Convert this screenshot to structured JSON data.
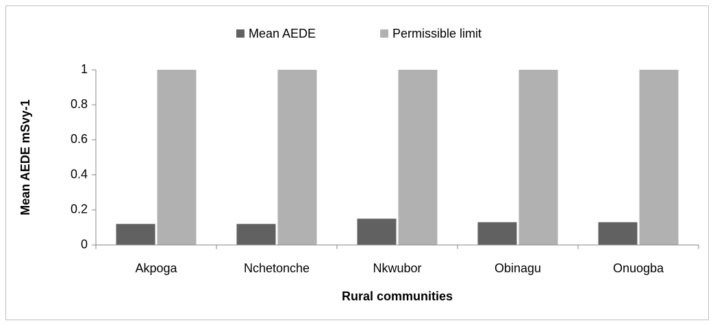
{
  "chart_data": {
    "type": "bar",
    "categories": [
      "Akpoga",
      "Nchetonche",
      "Nkwubor",
      "Obinagu",
      "Onuogba"
    ],
    "series": [
      {
        "name": "Mean AEDE",
        "color": "#616161",
        "values": [
          0.12,
          0.12,
          0.15,
          0.13,
          0.13
        ]
      },
      {
        "name": "Permissible limit",
        "color": "#b1b1b1",
        "values": [
          1,
          1,
          1,
          1,
          1
        ]
      }
    ],
    "xlabel": "Rural communities",
    "ylabel": "Mean AEDE mSvy-1",
    "ylim": [
      0,
      1
    ],
    "yticks": [
      0,
      0.2,
      0.4,
      0.6,
      0.8,
      1
    ],
    "legend": "top",
    "grid": false
  }
}
